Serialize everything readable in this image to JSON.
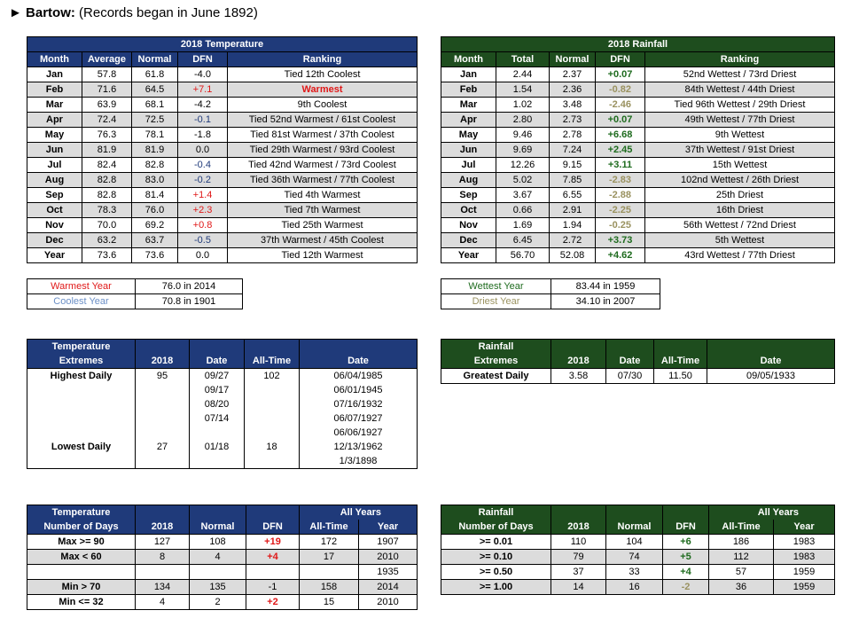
{
  "header": {
    "arrow": "►",
    "station": "Bartow:",
    "note": " (Records began in June 1892)"
  },
  "temp": {
    "title": "2018 Temperature",
    "cols": [
      "Month",
      "Average",
      "Normal",
      "DFN",
      "Ranking"
    ],
    "rows": [
      [
        "Jan",
        "57.8",
        "61.8",
        "-4.0",
        "Tied 12th Coolest",
        "",
        ""
      ],
      [
        "Feb",
        "71.6",
        "64.5",
        "+7.1",
        "Warmest",
        "red",
        "red"
      ],
      [
        "Mar",
        "63.9",
        "68.1",
        "-4.2",
        "9th Coolest",
        "",
        ""
      ],
      [
        "Apr",
        "72.4",
        "72.5",
        "-0.1",
        "Tied 52nd Warmest / 61st Coolest",
        "blue",
        ""
      ],
      [
        "May",
        "76.3",
        "78.1",
        "-1.8",
        "Tied 81st Warmest / 37th Coolest",
        "",
        ""
      ],
      [
        "Jun",
        "81.9",
        "81.9",
        "0.0",
        "Tied 29th Warmest / 93rd Coolest",
        "",
        ""
      ],
      [
        "Jul",
        "82.4",
        "82.8",
        "-0.4",
        "Tied 42nd Warmest / 73rd Coolest",
        "blue",
        ""
      ],
      [
        "Aug",
        "82.8",
        "83.0",
        "-0.2",
        "Tied 36th Warmest / 77th Coolest",
        "blue",
        ""
      ],
      [
        "Sep",
        "82.8",
        "81.4",
        "+1.4",
        "Tied 4th Warmest",
        "red",
        ""
      ],
      [
        "Oct",
        "78.3",
        "76.0",
        "+2.3",
        "Tied 7th Warmest",
        "red",
        ""
      ],
      [
        "Nov",
        "70.0",
        "69.2",
        "+0.8",
        "Tied 25th Warmest",
        "red",
        ""
      ],
      [
        "Dec",
        "63.2",
        "63.7",
        "-0.5",
        "37th Warmest / 45th Coolest",
        "blue",
        ""
      ],
      [
        "Year",
        "73.6",
        "73.6",
        "0.0",
        "Tied 12th Warmest",
        "",
        ""
      ]
    ]
  },
  "rain": {
    "title": "2018 Rainfall",
    "cols": [
      "Month",
      "Total",
      "Normal",
      "DFN",
      "Ranking"
    ],
    "rows": [
      [
        "Jan",
        "2.44",
        "2.37",
        "+0.07",
        "52nd Wettest / 73rd Driest",
        "grn"
      ],
      [
        "Feb",
        "1.54",
        "2.36",
        "-0.82",
        "84th Wettest / 44th Driest",
        "tan"
      ],
      [
        "Mar",
        "1.02",
        "3.48",
        "-2.46",
        "Tied 96th Wettest / 29th Driest",
        "tan"
      ],
      [
        "Apr",
        "2.80",
        "2.73",
        "+0.07",
        "49th Wettest / 77th Driest",
        "grn"
      ],
      [
        "May",
        "9.46",
        "2.78",
        "+6.68",
        "9th Wettest",
        "grn"
      ],
      [
        "Jun",
        "9.69",
        "7.24",
        "+2.45",
        "37th Wettest / 91st Driest",
        "grn"
      ],
      [
        "Jul",
        "12.26",
        "9.15",
        "+3.11",
        "15th Wettest",
        "grn"
      ],
      [
        "Aug",
        "5.02",
        "7.85",
        "-2.83",
        "102nd Wettest / 26th Driest",
        "tan"
      ],
      [
        "Sep",
        "3.67",
        "6.55",
        "-2.88",
        "25th Driest",
        "tan"
      ],
      [
        "Oct",
        "0.66",
        "2.91",
        "-2.25",
        "16th Driest",
        "tan"
      ],
      [
        "Nov",
        "1.69",
        "1.94",
        "-0.25",
        "56th Wettest / 72nd Driest",
        "tan"
      ],
      [
        "Dec",
        "6.45",
        "2.72",
        "+3.73",
        "5th Wettest",
        "grn"
      ],
      [
        "Year",
        "56.70",
        "52.08",
        "+4.62",
        "43rd Wettest / 77th Driest",
        "grn"
      ]
    ]
  },
  "temp_years": [
    [
      "Warmest Year",
      "76.0 in 2014",
      "red"
    ],
    [
      "Coolest Year",
      "70.8 in 1901",
      "lblue"
    ]
  ],
  "rain_years": [
    [
      "Wettest Year",
      "83.44 in 1959",
      "grn"
    ],
    [
      "Driest Year",
      "34.10 in 2007",
      "tan"
    ]
  ],
  "temp_ext": {
    "h1": "Temperature",
    "h2": "Extremes",
    "c2018": "2018",
    "cdate": "Date",
    "call": "All-Time",
    "cdate2": "Date",
    "rows": [
      [
        "Highest Daily",
        "95",
        "09/27",
        "102",
        "06/04/1985"
      ],
      [
        "",
        "",
        "09/17",
        "",
        "06/01/1945"
      ],
      [
        "",
        "",
        "08/20",
        "",
        "07/16/1932"
      ],
      [
        "",
        "",
        "07/14",
        "",
        "06/07/1927"
      ],
      [
        "",
        "",
        "",
        "",
        "06/06/1927"
      ],
      [
        "Lowest Daily",
        "27",
        "01/18",
        "18",
        "12/13/1962"
      ],
      [
        "",
        "",
        "",
        "",
        "1/3/1898"
      ]
    ]
  },
  "rain_ext": {
    "h1": "Rainfall",
    "h2": "Extremes",
    "c2018": "2018",
    "cdate": "Date",
    "call": "All-Time",
    "cdate2": "Date",
    "rows": [
      [
        "Greatest Daily",
        "3.58",
        "07/30",
        "11.50",
        "09/05/1933"
      ]
    ]
  },
  "temp_days": {
    "h1": "Temperature",
    "h2": "Number of Days",
    "allyears": "All Years",
    "cols": [
      "2018",
      "Normal",
      "DFN",
      "All-Time",
      "Year"
    ],
    "rows": [
      [
        "Max >= 90",
        "127",
        "108",
        "+19",
        "172",
        "1907",
        "red"
      ],
      [
        "Max < 60",
        "8",
        "4",
        "+4",
        "17",
        "2010",
        "red"
      ],
      [
        "",
        "",
        "",
        "",
        "",
        "1935",
        ""
      ],
      [
        "Min > 70",
        "134",
        "135",
        "-1",
        "158",
        "2014",
        ""
      ],
      [
        "Min <= 32",
        "4",
        "2",
        "+2",
        "15",
        "2010",
        "red"
      ]
    ]
  },
  "rain_days": {
    "h1": "Rainfall",
    "h2": "Number of Days",
    "allyears": "All Years",
    "cols": [
      "2018",
      "Normal",
      "DFN",
      "All-Time",
      "Year"
    ],
    "rows": [
      [
        ">= 0.01",
        "110",
        "104",
        "+6",
        "186",
        "1983",
        "grn"
      ],
      [
        ">= 0.10",
        "79",
        "74",
        "+5",
        "112",
        "1983",
        "grn"
      ],
      [
        ">= 0.50",
        "37",
        "33",
        "+4",
        "57",
        "1959",
        "grn"
      ],
      [
        ">= 1.00",
        "14",
        "16",
        "-2",
        "36",
        "1959",
        "tan"
      ]
    ]
  }
}
